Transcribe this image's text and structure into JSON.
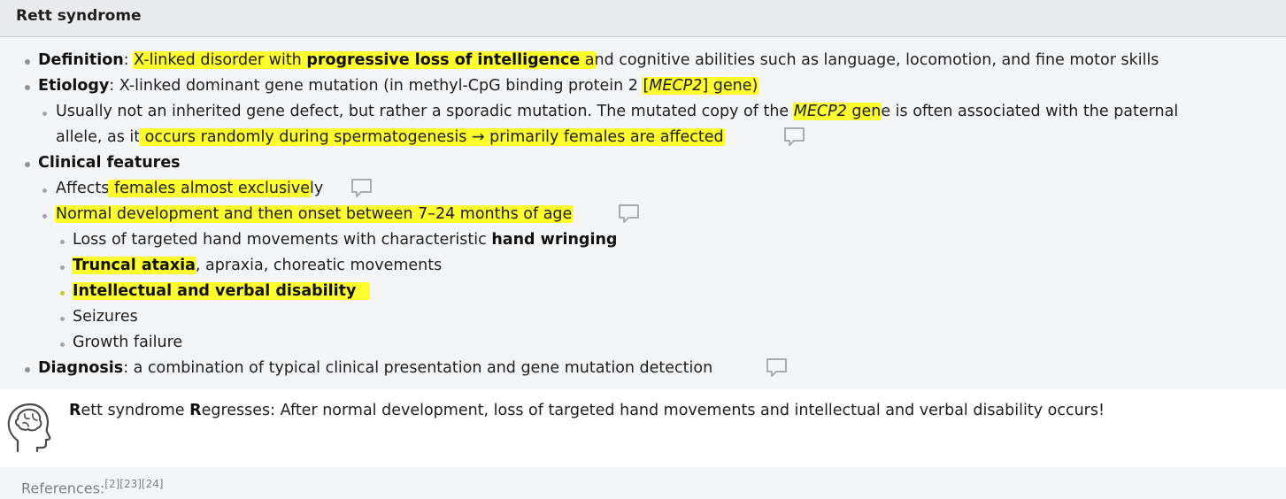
{
  "header": {
    "title": "Rett syndrome"
  },
  "definition": {
    "label": "Definition",
    "sep": ": ",
    "hl_a": "X-linked disorder with ",
    "hl_b": "progressive loss of intelligence",
    "hl_c": " a",
    "rest": "nd cognitive abilities such as language, locomotion, and fine motor skills"
  },
  "etiology": {
    "label": "Etiology",
    "text_a": ": X-linked dominant gene mutation (in methyl-CpG binding protein 2 ",
    "hl_a": "[",
    "hl_gene": "MECP2",
    "hl_b": "] gene)",
    "sub_line1_a": "Usually not an inherited gene defect, but rather a sporadic mutation. The mutated copy of the ",
    "sub_line1_gene": "MECP2",
    "sub_line1_hl": " gen",
    "sub_line1_b": "e is often associated with the paternal",
    "sub_line2_a": "allele, as it",
    "sub_line2_hl": " occurs randomly during spermatogenesis → primarily females are affected "
  },
  "clinical": {
    "label": "Clinical features",
    "affects_a": "Affects",
    "affects_hl": " females almost exclusive",
    "affects_b": "ly",
    "normal_hl": "Normal development and then onset between 7–24 months of age ",
    "items": {
      "hand_a": "Loss of targeted hand movements with characteristic ",
      "hand_b": "hand wringing",
      "truncal_hl": "Truncal ataxia",
      "truncal_b": ", apraxia, choreatic movements",
      "intellectual": "Intellectual and verbal disability",
      "seizures": "Seizures",
      "growth": "Growth failure"
    }
  },
  "diagnosis": {
    "label": "Diagnosis",
    "text": ": a combination of typical clinical presentation and gene mutation detection"
  },
  "mnemonic": {
    "r1": "R",
    "t1": "ett syndrome ",
    "r2": "R",
    "t2": "egresses: After normal development, loss of targeted hand movements and intellectual and verbal disability occurs!"
  },
  "references": {
    "label": "References:",
    "sup": "[2][23][24]"
  },
  "colors": {
    "highlight": "#ffff2e",
    "header_bg": "#eaebed",
    "content_bg": "#f4f5f7"
  }
}
